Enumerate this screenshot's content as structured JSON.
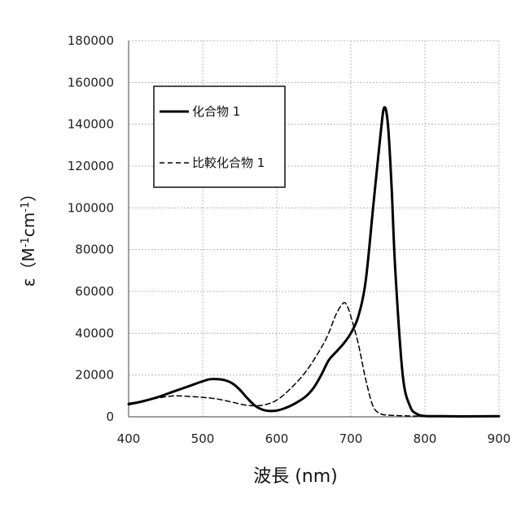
{
  "chart_data": {
    "type": "line",
    "xlabel": "波長 (nm)",
    "ylabel_prefix": "ε（M",
    "ylabel_sup1": "-1",
    "ylabel_mid": "cm",
    "ylabel_sup2": "-1",
    "ylabel_suffix": "）",
    "xlim": [
      400,
      900
    ],
    "ylim": [
      0,
      180000
    ],
    "xticks": [
      400,
      500,
      600,
      700,
      800,
      900
    ],
    "yticks": [
      0,
      20000,
      40000,
      60000,
      80000,
      100000,
      120000,
      140000,
      160000,
      180000
    ],
    "grid": true,
    "legend_position": "top-left",
    "series": [
      {
        "name": "化合物 1",
        "style": "solid",
        "color": "#000000",
        "x": [
          400,
          420,
          440,
          460,
          480,
          500,
          510,
          520,
          530,
          540,
          550,
          560,
          570,
          580,
          590,
          600,
          610,
          620,
          630,
          640,
          650,
          660,
          670,
          680,
          690,
          700,
          710,
          720,
          730,
          740,
          745,
          750,
          755,
          760,
          770,
          780,
          790,
          800,
          820,
          850,
          900
        ],
        "y": [
          6000,
          7500,
          9500,
          12000,
          14500,
          17000,
          18000,
          18000,
          17500,
          16000,
          13000,
          9000,
          5500,
          3500,
          2800,
          3000,
          4000,
          5500,
          7500,
          10000,
          14000,
          20000,
          27000,
          31000,
          35000,
          40000,
          48000,
          65000,
          100000,
          135000,
          148000,
          140000,
          110000,
          70000,
          20000,
          5000,
          1200,
          400,
          300,
          200,
          300
        ]
      },
      {
        "name": "比較化合物 1",
        "style": "dashed",
        "color": "#000000",
        "x": [
          400,
          420,
          440,
          460,
          480,
          500,
          520,
          540,
          560,
          580,
          600,
          620,
          640,
          660,
          670,
          680,
          690,
          695,
          700,
          710,
          720,
          730,
          740,
          750,
          770,
          800,
          900
        ],
        "y": [
          6500,
          7500,
          9000,
          10000,
          9800,
          9300,
          8500,
          7000,
          5500,
          5500,
          8000,
          14000,
          22000,
          33000,
          40000,
          49000,
          54500,
          53000,
          48000,
          35000,
          18000,
          5000,
          1500,
          800,
          500,
          300,
          200
        ]
      }
    ]
  }
}
